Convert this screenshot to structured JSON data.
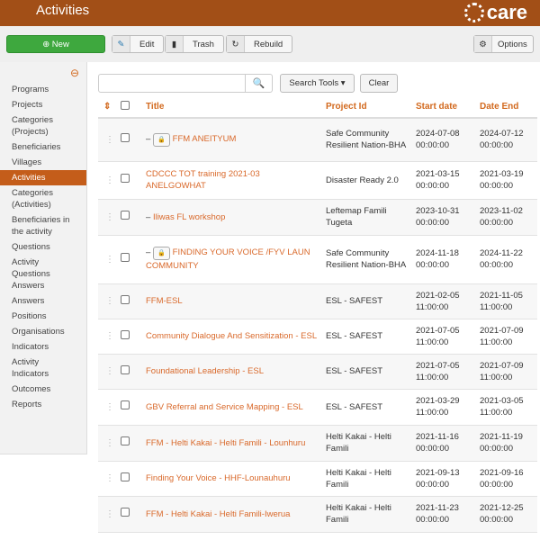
{
  "header": {
    "title": "Activities",
    "logo_text": "care"
  },
  "toolbar": {
    "new": "New",
    "edit": "Edit",
    "trash": "Trash",
    "rebuild": "Rebuild",
    "options": "Options"
  },
  "sidebar": {
    "items": [
      "Programs",
      "Projects",
      "Categories (Projects)",
      "Beneficiaries",
      "Villages",
      "Activities",
      "Categories (Activities)",
      "Beneficiaries in the activity",
      "Questions",
      "Activity Questions Answers",
      "Answers",
      "Positions",
      "Organisations",
      "Indicators",
      "Activity Indicators",
      "Outcomes",
      "Reports"
    ],
    "active": "Activities"
  },
  "search": {
    "value": "",
    "placeholder": "",
    "tools": "Search Tools ▾",
    "clear": "Clear"
  },
  "table": {
    "columns": [
      "Title",
      "Project Id",
      "Start date",
      "Date End"
    ],
    "rows": [
      {
        "prefix": "–",
        "locked": true,
        "title": "FFM ANEITYUM",
        "project": "Safe Community Resilient Nation-BHA",
        "start": "2024-07-08 00:00:00",
        "end": "2024-07-12 00:00:00"
      },
      {
        "prefix": "",
        "locked": false,
        "title": "CDCCC TOT training 2021-03 ANELGOWHAT",
        "project": "Disaster Ready 2.0",
        "start": "2021-03-15 00:00:00",
        "end": "2021-03-19 00:00:00"
      },
      {
        "prefix": "–",
        "locked": false,
        "title": "Iliwas FL workshop",
        "project": "Leftemap Famili Tugeta",
        "start": "2023-10-31 00:00:00",
        "end": "2023-11-02 00:00:00"
      },
      {
        "prefix": "–",
        "locked": true,
        "title": "FINDING YOUR VOICE /FYV LAUN COMMUNITY",
        "project": "Safe Community Resilient Nation-BHA",
        "start": "2024-11-18 00:00:00",
        "end": "2024-11-22 00:00:00"
      },
      {
        "prefix": "",
        "locked": false,
        "title": "FFM-ESL",
        "project": "ESL - SAFEST",
        "start": "2021-02-05 11:00:00",
        "end": "2021-11-05 11:00:00"
      },
      {
        "prefix": "",
        "locked": false,
        "title": "Community Dialogue And Sensitization - ESL",
        "project": "ESL - SAFEST",
        "start": "2021-07-05 11:00:00",
        "end": "2021-07-09 11:00:00"
      },
      {
        "prefix": "",
        "locked": false,
        "title": "Foundational Leadership - ESL",
        "project": "ESL - SAFEST",
        "start": "2021-07-05 11:00:00",
        "end": "2021-07-09 11:00:00"
      },
      {
        "prefix": "",
        "locked": false,
        "title": "GBV Referral and Service Mapping - ESL",
        "project": "ESL - SAFEST",
        "start": "2021-03-29 11:00:00",
        "end": "2021-03-05 11:00:00"
      },
      {
        "prefix": "",
        "locked": false,
        "title": "FFM - Helti Kakai - Helti Famili - Lounhuru",
        "project": "Helti Kakai - Helti Famili",
        "start": "2021-11-16 00:00:00",
        "end": "2021-11-19 00:00:00"
      },
      {
        "prefix": "",
        "locked": false,
        "title": "Finding Your Voice - HHF-Lounauhuru",
        "project": "Helti Kakai - Helti Famili",
        "start": "2021-09-13 00:00:00",
        "end": "2021-09-16 00:00:00"
      },
      {
        "prefix": "",
        "locked": false,
        "title": "FFM - Helti Kakai - Helti Famili-Iwerua",
        "project": "Helti Kakai - Helti Famili",
        "start": "2021-11-23 00:00:00",
        "end": "2021-12-25 00:00:00"
      }
    ]
  },
  "colors": {
    "header": "#a24f17",
    "accent": "#d9692b",
    "new_button": "#3ea83e"
  }
}
